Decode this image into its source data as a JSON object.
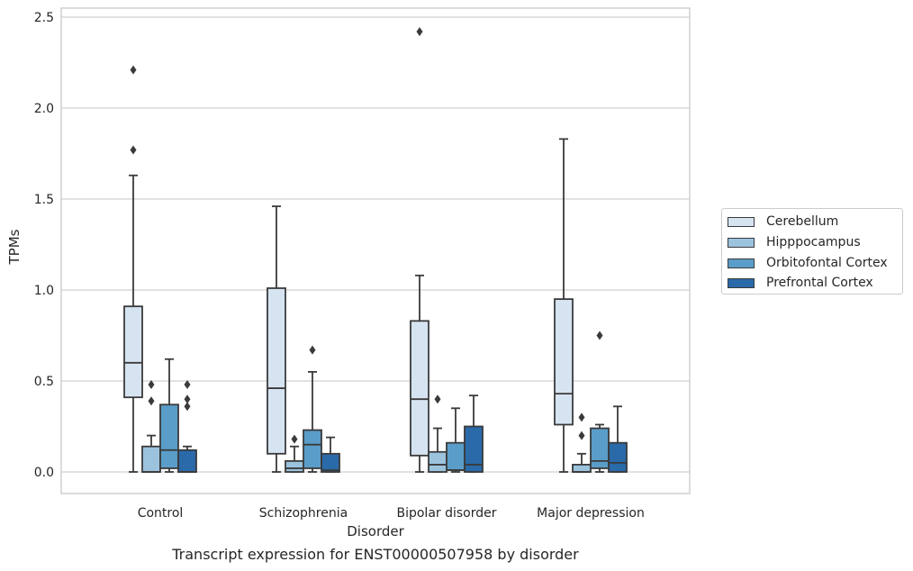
{
  "chart_data": {
    "type": "boxplot",
    "caption": "Transcript expression for ENST00000507958 by disorder",
    "xlabel": "Disorder",
    "ylabel": "TPMs",
    "ylim": [
      -0.12,
      2.55
    ],
    "yticks": [
      "0.0",
      "0.5",
      "1.0",
      "1.5",
      "2.0",
      "2.5"
    ],
    "grid": "horizontal",
    "legend_position": "right",
    "categories": [
      "Control",
      "Schizophrenia",
      "Bipolar disorder",
      "Major depression"
    ],
    "series": [
      {
        "name": "Cerebellum",
        "color": "#d6e4f2",
        "boxes": [
          {
            "whislo": 0.0,
            "q1": 0.41,
            "med": 0.6,
            "q3": 0.91,
            "whishi": 1.63,
            "fliers": [
              1.77,
              2.21
            ]
          },
          {
            "whislo": 0.0,
            "q1": 0.1,
            "med": 0.46,
            "q3": 1.01,
            "whishi": 1.46,
            "fliers": []
          },
          {
            "whislo": 0.0,
            "q1": 0.09,
            "med": 0.4,
            "q3": 0.83,
            "whishi": 1.08,
            "fliers": [
              2.42
            ]
          },
          {
            "whislo": 0.0,
            "q1": 0.26,
            "med": 0.43,
            "q3": 0.95,
            "whishi": 1.83,
            "fliers": []
          }
        ]
      },
      {
        "name": "Hipppocampus",
        "color": "#9cc3de",
        "boxes": [
          {
            "whislo": 0.0,
            "q1": 0.0,
            "med": 0.0,
            "q3": 0.14,
            "whishi": 0.2,
            "fliers": [
              0.39,
              0.48
            ]
          },
          {
            "whislo": 0.0,
            "q1": 0.0,
            "med": 0.02,
            "q3": 0.06,
            "whishi": 0.14,
            "fliers": [
              0.18
            ]
          },
          {
            "whislo": 0.0,
            "q1": 0.0,
            "med": 0.04,
            "q3": 0.11,
            "whishi": 0.24,
            "fliers": [
              0.4
            ]
          },
          {
            "whislo": 0.0,
            "q1": 0.0,
            "med": 0.0,
            "q3": 0.04,
            "whishi": 0.1,
            "fliers": [
              0.2,
              0.3
            ]
          }
        ]
      },
      {
        "name": "Orbitofontal Cortex",
        "color": "#5a9dc9",
        "boxes": [
          {
            "whislo": 0.0,
            "q1": 0.02,
            "med": 0.12,
            "q3": 0.37,
            "whishi": 0.62,
            "fliers": []
          },
          {
            "whislo": 0.0,
            "q1": 0.02,
            "med": 0.15,
            "q3": 0.23,
            "whishi": 0.55,
            "fliers": [
              0.67
            ]
          },
          {
            "whislo": 0.0,
            "q1": 0.01,
            "med": 0.01,
            "q3": 0.16,
            "whishi": 0.35,
            "fliers": []
          },
          {
            "whislo": 0.0,
            "q1": 0.02,
            "med": 0.06,
            "q3": 0.24,
            "whishi": 0.26,
            "fliers": [
              0.75
            ]
          }
        ]
      },
      {
        "name": "Prefrontal Cortex",
        "color": "#2a6aa9",
        "boxes": [
          {
            "whislo": 0.0,
            "q1": 0.0,
            "med": 0.0,
            "q3": 0.12,
            "whishi": 0.14,
            "fliers": [
              0.36,
              0.4,
              0.48
            ]
          },
          {
            "whislo": 0.0,
            "q1": 0.0,
            "med": 0.01,
            "q3": 0.1,
            "whishi": 0.19,
            "fliers": []
          },
          {
            "whislo": 0.0,
            "q1": 0.0,
            "med": 0.04,
            "q3": 0.25,
            "whishi": 0.42,
            "fliers": []
          },
          {
            "whislo": 0.0,
            "q1": 0.0,
            "med": 0.05,
            "q3": 0.16,
            "whishi": 0.36,
            "fliers": []
          }
        ]
      }
    ]
  }
}
